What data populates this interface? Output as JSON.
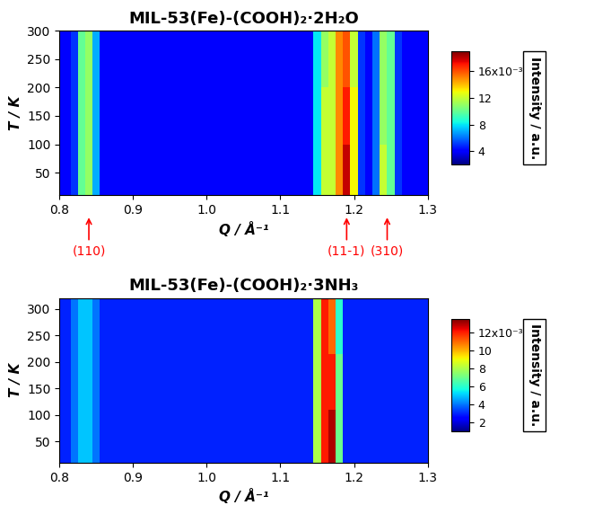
{
  "chart_data": [
    {
      "type": "heatmap",
      "title": "MIL-53(Fe)-(COOH)₂·2H₂O",
      "x_label": "Q / Å⁻¹",
      "y_label": "T / K",
      "x": [
        0.8,
        0.81,
        0.82,
        0.83,
        0.84,
        0.85,
        0.86,
        0.87,
        0.88,
        0.89,
        0.9,
        0.91,
        0.92,
        0.93,
        0.94,
        0.95,
        0.96,
        0.97,
        0.98,
        0.99,
        1.0,
        1.01,
        1.02,
        1.03,
        1.04,
        1.05,
        1.06,
        1.07,
        1.08,
        1.09,
        1.1,
        1.11,
        1.12,
        1.13,
        1.14,
        1.15,
        1.16,
        1.17,
        1.18,
        1.19,
        1.2,
        1.21,
        1.22,
        1.23,
        1.24,
        1.25,
        1.26,
        1.27,
        1.28,
        1.29,
        1.3
      ],
      "y": [
        50,
        150,
        250
      ],
      "cells": [
        [
          0.004,
          0.004,
          0.005,
          0.01,
          0.011,
          0.007,
          0.004,
          0.004,
          0.004,
          0.004,
          0.004,
          0.004,
          0.004,
          0.004,
          0.004,
          0.004,
          0.004,
          0.004,
          0.004,
          0.004,
          0.004,
          0.004,
          0.004,
          0.004,
          0.004,
          0.004,
          0.004,
          0.004,
          0.004,
          0.004,
          0.004,
          0.004,
          0.004,
          0.004,
          0.004,
          0.008,
          0.012,
          0.012,
          0.015,
          0.018,
          0.013,
          0.005,
          0.004,
          0.006,
          0.012,
          0.01,
          0.005,
          0.004,
          0.004,
          0.004,
          0.004
        ],
        [
          0.004,
          0.004,
          0.005,
          0.01,
          0.011,
          0.007,
          0.004,
          0.004,
          0.004,
          0.004,
          0.004,
          0.004,
          0.004,
          0.004,
          0.004,
          0.004,
          0.004,
          0.004,
          0.004,
          0.004,
          0.004,
          0.004,
          0.004,
          0.004,
          0.004,
          0.004,
          0.004,
          0.004,
          0.004,
          0.004,
          0.004,
          0.004,
          0.004,
          0.004,
          0.004,
          0.008,
          0.012,
          0.012,
          0.015,
          0.017,
          0.013,
          0.005,
          0.004,
          0.006,
          0.011,
          0.01,
          0.005,
          0.004,
          0.004,
          0.004,
          0.004
        ],
        [
          0.004,
          0.004,
          0.005,
          0.01,
          0.011,
          0.007,
          0.004,
          0.004,
          0.004,
          0.004,
          0.004,
          0.004,
          0.004,
          0.004,
          0.004,
          0.004,
          0.004,
          0.004,
          0.004,
          0.004,
          0.004,
          0.004,
          0.004,
          0.004,
          0.004,
          0.004,
          0.004,
          0.004,
          0.004,
          0.004,
          0.004,
          0.004,
          0.004,
          0.004,
          0.004,
          0.008,
          0.011,
          0.012,
          0.015,
          0.016,
          0.012,
          0.005,
          0.004,
          0.006,
          0.011,
          0.01,
          0.005,
          0.004,
          0.004,
          0.004,
          0.004
        ]
      ],
      "xlim": [
        0.8,
        1.3
      ],
      "ylim": [
        10,
        300
      ],
      "xticks": [
        0.8,
        0.9,
        1.0,
        1.1,
        1.2,
        1.3
      ],
      "yticks": [
        50,
        100,
        150,
        200,
        250,
        300
      ],
      "colorbar": {
        "label": "Intensity / a.u.",
        "range": [
          0.002,
          0.019
        ],
        "ticks": [
          {
            "value": 0.004,
            "label": "4"
          },
          {
            "value": 0.008,
            "label": "8"
          },
          {
            "value": 0.012,
            "label": "12"
          },
          {
            "value": 0.016,
            "label": "16x10⁻³"
          }
        ]
      },
      "annotations": [
        {
          "x": 0.84,
          "label": "(110)"
        },
        {
          "x": 1.19,
          "label": "(11-1)"
        },
        {
          "x": 1.245,
          "label": "(310)"
        }
      ]
    },
    {
      "type": "heatmap",
      "title": "MIL-53(Fe)-(COOH)₂·3NH₃",
      "x_label": "Q / Å⁻¹",
      "y_label": "T / K",
      "x": [
        0.8,
        0.81,
        0.82,
        0.83,
        0.84,
        0.85,
        0.86,
        0.87,
        0.88,
        0.89,
        0.9,
        0.91,
        0.92,
        0.93,
        0.94,
        0.95,
        0.96,
        0.97,
        0.98,
        0.99,
        1.0,
        1.01,
        1.02,
        1.03,
        1.04,
        1.05,
        1.06,
        1.07,
        1.08,
        1.09,
        1.1,
        1.11,
        1.12,
        1.13,
        1.14,
        1.15,
        1.16,
        1.17,
        1.18,
        1.19,
        1.2,
        1.21,
        1.22,
        1.23,
        1.24,
        1.25,
        1.26,
        1.27,
        1.28,
        1.29,
        1.3
      ],
      "y": [
        60,
        160,
        270
      ],
      "cells": [
        [
          0.003,
          0.003,
          0.004,
          0.005,
          0.005,
          0.004,
          0.003,
          0.003,
          0.003,
          0.003,
          0.003,
          0.003,
          0.003,
          0.003,
          0.003,
          0.003,
          0.003,
          0.003,
          0.003,
          0.003,
          0.003,
          0.003,
          0.003,
          0.003,
          0.003,
          0.003,
          0.003,
          0.003,
          0.003,
          0.003,
          0.003,
          0.003,
          0.003,
          0.003,
          0.003,
          0.008,
          0.012,
          0.013,
          0.007,
          0.003,
          0.003,
          0.003,
          0.003,
          0.003,
          0.003,
          0.003,
          0.003,
          0.003,
          0.003,
          0.003,
          0.003
        ],
        [
          0.003,
          0.003,
          0.004,
          0.005,
          0.005,
          0.004,
          0.003,
          0.003,
          0.003,
          0.003,
          0.003,
          0.003,
          0.003,
          0.003,
          0.003,
          0.003,
          0.003,
          0.003,
          0.003,
          0.003,
          0.003,
          0.003,
          0.003,
          0.003,
          0.003,
          0.003,
          0.003,
          0.003,
          0.003,
          0.003,
          0.003,
          0.003,
          0.003,
          0.003,
          0.003,
          0.008,
          0.012,
          0.012,
          0.007,
          0.003,
          0.003,
          0.003,
          0.003,
          0.003,
          0.003,
          0.003,
          0.003,
          0.003,
          0.003,
          0.003,
          0.003
        ],
        [
          0.003,
          0.003,
          0.004,
          0.005,
          0.005,
          0.004,
          0.003,
          0.003,
          0.003,
          0.003,
          0.003,
          0.003,
          0.003,
          0.003,
          0.003,
          0.003,
          0.003,
          0.003,
          0.003,
          0.003,
          0.003,
          0.003,
          0.003,
          0.003,
          0.003,
          0.003,
          0.003,
          0.003,
          0.003,
          0.003,
          0.003,
          0.003,
          0.003,
          0.003,
          0.003,
          0.008,
          0.012,
          0.011,
          0.006,
          0.003,
          0.003,
          0.003,
          0.003,
          0.003,
          0.003,
          0.003,
          0.003,
          0.003,
          0.003,
          0.003,
          0.003
        ]
      ],
      "xlim": [
        0.8,
        1.3
      ],
      "ylim": [
        10,
        320
      ],
      "xticks": [
        0.8,
        0.9,
        1.0,
        1.1,
        1.2,
        1.3
      ],
      "yticks": [
        50,
        100,
        150,
        200,
        250,
        300
      ],
      "colorbar": {
        "label": "Intensity / a.u.",
        "range": [
          0.001,
          0.0135
        ],
        "ticks": [
          {
            "value": 0.002,
            "label": "2"
          },
          {
            "value": 0.004,
            "label": "4"
          },
          {
            "value": 0.006,
            "label": "6"
          },
          {
            "value": 0.008,
            "label": "8"
          },
          {
            "value": 0.01,
            "label": "10"
          },
          {
            "value": 0.012,
            "label": "12x10⁻³"
          }
        ]
      }
    }
  ]
}
